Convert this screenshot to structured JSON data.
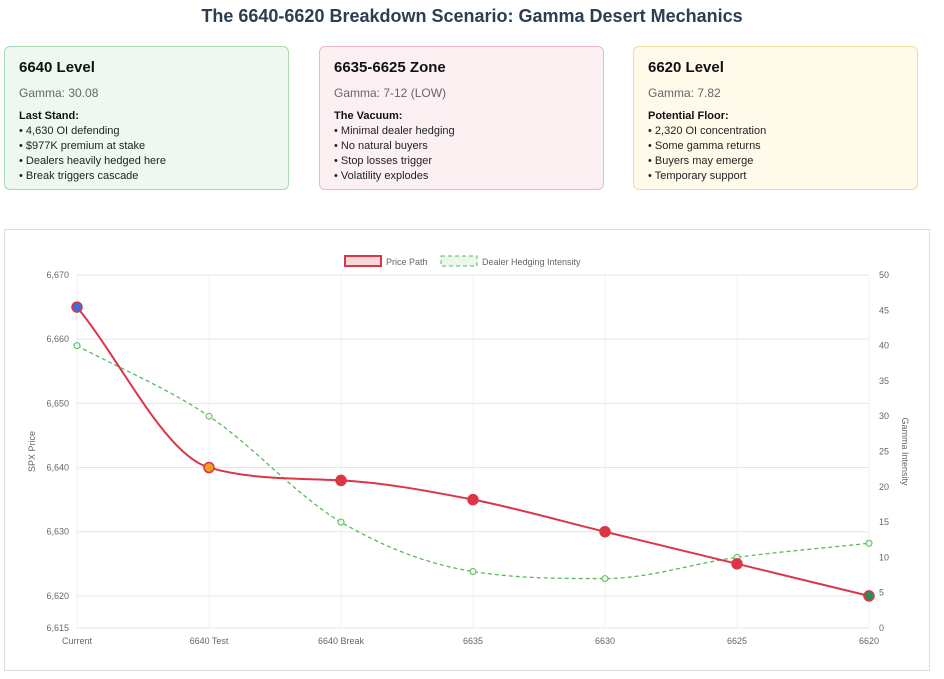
{
  "page": {
    "title": "The 6640-6620 Breakdown Scenario: Gamma Desert Mechanics"
  },
  "cards": [
    {
      "heading": "6640 Level",
      "gamma": "Gamma: 30.08",
      "label": "Last Stand:",
      "bullets": [
        "4,630 OI defending",
        "$977K premium at stake",
        "Dealers heavily hedged here",
        "Break triggers cascade"
      ]
    },
    {
      "heading": "6635-6625 Zone",
      "gamma": "Gamma: 7-12 (LOW)",
      "label": "The Vacuum:",
      "bullets": [
        "Minimal dealer hedging",
        "No natural buyers",
        "Stop losses trigger",
        "Volatility explodes"
      ]
    },
    {
      "heading": "6620 Level",
      "gamma": "Gamma: 7.82",
      "label": "Potential Floor:",
      "bullets": [
        "2,320 OI concentration",
        "Some gamma returns",
        "Buyers may emerge",
        "Temporary support"
      ]
    }
  ],
  "chart_data": {
    "type": "line",
    "categories": [
      "Current",
      "6640 Test",
      "6640 Break",
      "6635",
      "6630",
      "6625",
      "6620"
    ],
    "series": [
      {
        "name": "Price Path",
        "axis": "left",
        "values": [
          6665,
          6640,
          6638,
          6635,
          6630,
          6625,
          6620
        ],
        "color": "#dc3545",
        "style": "solid",
        "point_colors": [
          "#3a6fd8",
          "#f0a020",
          "#dc3545",
          "#dc3545",
          "#dc3545",
          "#dc3545",
          "#2e8b57"
        ]
      },
      {
        "name": "Dealer Hedging Intensity",
        "axis": "right",
        "values": [
          40,
          30,
          15,
          8,
          7,
          10,
          12
        ],
        "color": "#5cb85c",
        "style": "dashed"
      }
    ],
    "ylabel": "SPX Price",
    "y2label": "Gamma Intensity",
    "ylim": [
      6615,
      6670
    ],
    "yticks": [
      "6,670",
      "6,660",
      "6,650",
      "6,640",
      "6,630",
      "6,620",
      "6,615"
    ],
    "y2lim": [
      0,
      50
    ],
    "y2ticks": [
      "50",
      "45",
      "40",
      "35",
      "30",
      "25",
      "20",
      "15",
      "10",
      "5",
      "0"
    ],
    "legend": "top",
    "grid": true
  }
}
